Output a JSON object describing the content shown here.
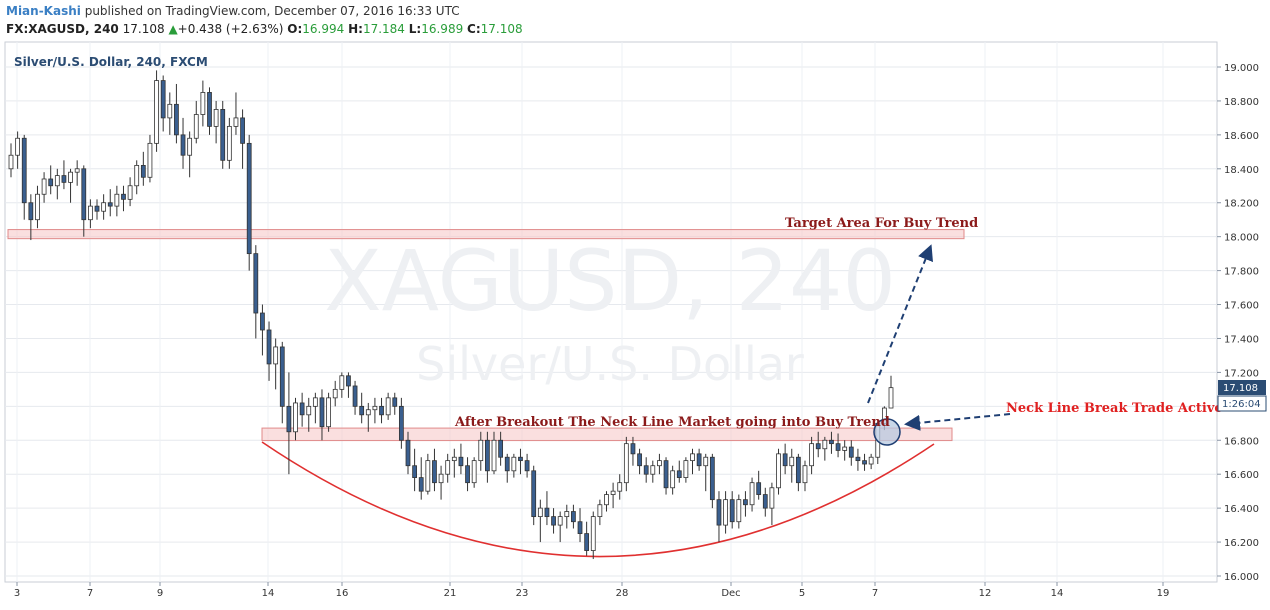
{
  "header": {
    "author": "Mian-Kashi",
    "published_text": "published on TradingView.com, December 07, 2016 16:33 UTC",
    "symbol": "FX:XAGUSD, 240",
    "last": "17.108",
    "change": "+0.438 (+2.63%)",
    "open_label": "O:",
    "open": "16.994",
    "high_label": "H:",
    "high": "17.184",
    "low_label": "L:",
    "low": "16.989",
    "close_label": "C:",
    "close": "17.108"
  },
  "chart": {
    "title": "Silver/U.S. Dollar, 240, FXCM",
    "watermark_main": "XAGUSD, 240",
    "watermark_sub": "Silver/U.S. Dollar",
    "price_tag": "17.108",
    "countdown_tag": "1:26:04"
  },
  "annotations": {
    "target": "Target Area For Buy Trend",
    "breakout": "After Breakout The Neck Line Market going into Buy Trend",
    "neckline": "Neck Line Break Trade Active"
  },
  "colors": {
    "up": "#ffffff",
    "down": "#3a5f8f",
    "wick": "#333333",
    "zone_fill": "#f7c9c9",
    "zone_stroke": "#e08a8a",
    "curve": "#e03030",
    "arrow": "#1f3f73",
    "annotation_dark": "#8b1a1a",
    "annotation_red": "#e02020",
    "up_text": "#2a9d3a"
  },
  "chart_data": {
    "type": "candlestick",
    "title": "Silver/U.S. Dollar, 240, FXCM",
    "xlabel": "",
    "ylabel": "",
    "ylim": [
      16.0,
      19.0
    ],
    "yticks": [
      "16.000",
      "16.200",
      "16.400",
      "16.600",
      "16.800",
      "17.000",
      "17.200",
      "17.400",
      "17.600",
      "17.800",
      "18.000",
      "18.200",
      "18.400",
      "18.600",
      "18.800",
      "19.000"
    ],
    "xticks": [
      "3",
      "7",
      "9",
      "14",
      "16",
      "21",
      "23",
      "28",
      "Dec",
      "5",
      "7",
      "12",
      "14",
      "19"
    ],
    "grid": true,
    "zones": [
      {
        "label": "Target Area For Buy Trend",
        "low": 18.0,
        "high": 18.03
      },
      {
        "label": "Neck Line",
        "low": 16.81,
        "high": 16.86
      }
    ],
    "ohlc": [
      [
        18.4,
        18.55,
        18.35,
        18.48
      ],
      [
        18.48,
        18.62,
        18.4,
        18.58
      ],
      [
        18.58,
        18.6,
        18.1,
        18.2
      ],
      [
        18.2,
        18.25,
        17.98,
        18.1
      ],
      [
        18.1,
        18.3,
        18.05,
        18.25
      ],
      [
        18.25,
        18.38,
        18.2,
        18.34
      ],
      [
        18.34,
        18.42,
        18.25,
        18.3
      ],
      [
        18.3,
        18.4,
        18.22,
        18.36
      ],
      [
        18.36,
        18.45,
        18.28,
        18.32
      ],
      [
        18.32,
        18.4,
        18.2,
        18.38
      ],
      [
        18.38,
        18.45,
        18.3,
        18.4
      ],
      [
        18.4,
        18.42,
        18.0,
        18.1
      ],
      [
        18.1,
        18.22,
        18.05,
        18.18
      ],
      [
        18.18,
        18.22,
        18.1,
        18.15
      ],
      [
        18.15,
        18.25,
        18.1,
        18.2
      ],
      [
        18.2,
        18.28,
        18.12,
        18.18
      ],
      [
        18.18,
        18.3,
        18.12,
        18.25
      ],
      [
        18.25,
        18.3,
        18.15,
        18.22
      ],
      [
        18.22,
        18.35,
        18.18,
        18.3
      ],
      [
        18.3,
        18.45,
        18.25,
        18.42
      ],
      [
        18.42,
        18.5,
        18.3,
        18.35
      ],
      [
        18.35,
        18.6,
        18.32,
        18.55
      ],
      [
        18.55,
        18.98,
        18.5,
        18.92
      ],
      [
        18.92,
        18.95,
        18.62,
        18.7
      ],
      [
        18.7,
        18.85,
        18.6,
        18.78
      ],
      [
        18.78,
        18.9,
        18.55,
        18.6
      ],
      [
        18.6,
        18.7,
        18.4,
        18.48
      ],
      [
        18.48,
        18.62,
        18.35,
        18.58
      ],
      [
        18.58,
        18.8,
        18.55,
        18.72
      ],
      [
        18.72,
        18.92,
        18.65,
        18.85
      ],
      [
        18.85,
        18.88,
        18.6,
        18.65
      ],
      [
        18.65,
        18.8,
        18.55,
        18.75
      ],
      [
        18.75,
        18.8,
        18.4,
        18.45
      ],
      [
        18.45,
        18.7,
        18.4,
        18.65
      ],
      [
        18.65,
        18.85,
        18.6,
        18.7
      ],
      [
        18.7,
        18.75,
        18.4,
        18.55
      ],
      [
        18.55,
        18.6,
        17.8,
        17.9
      ],
      [
        17.9,
        17.95,
        17.4,
        17.55
      ],
      [
        17.55,
        17.6,
        17.3,
        17.45
      ],
      [
        17.45,
        17.5,
        17.15,
        17.25
      ],
      [
        17.25,
        17.4,
        17.1,
        17.35
      ],
      [
        17.35,
        17.38,
        16.9,
        17.0
      ],
      [
        17.0,
        17.2,
        16.6,
        16.85
      ],
      [
        16.85,
        17.05,
        16.8,
        17.02
      ],
      [
        17.02,
        17.08,
        16.88,
        16.95
      ],
      [
        16.95,
        17.05,
        16.85,
        17.0
      ],
      [
        17.0,
        17.08,
        16.9,
        17.05
      ],
      [
        17.05,
        17.1,
        16.8,
        16.88
      ],
      [
        16.88,
        17.08,
        16.85,
        17.05
      ],
      [
        17.05,
        17.15,
        17.0,
        17.1
      ],
      [
        17.1,
        17.2,
        17.05,
        17.18
      ],
      [
        17.18,
        17.2,
        17.05,
        17.12
      ],
      [
        17.12,
        17.15,
        16.95,
        17.0
      ],
      [
        17.0,
        17.08,
        16.9,
        16.95
      ],
      [
        16.95,
        17.02,
        16.85,
        16.98
      ],
      [
        16.98,
        17.05,
        16.9,
        17.0
      ],
      [
        17.0,
        17.05,
        16.9,
        16.95
      ],
      [
        16.95,
        17.08,
        16.92,
        17.05
      ],
      [
        17.05,
        17.08,
        16.95,
        17.0
      ],
      [
        17.0,
        17.05,
        16.75,
        16.8
      ],
      [
        16.8,
        16.85,
        16.6,
        16.65
      ],
      [
        16.65,
        16.75,
        16.5,
        16.58
      ],
      [
        16.58,
        16.7,
        16.45,
        16.5
      ],
      [
        16.5,
        16.72,
        16.48,
        16.68
      ],
      [
        16.68,
        16.75,
        16.5,
        16.55
      ],
      [
        16.55,
        16.65,
        16.45,
        16.6
      ],
      [
        16.6,
        16.72,
        16.55,
        16.68
      ],
      [
        16.68,
        16.75,
        16.58,
        16.7
      ],
      [
        16.7,
        16.78,
        16.6,
        16.65
      ],
      [
        16.65,
        16.7,
        16.5,
        16.55
      ],
      [
        16.55,
        16.7,
        16.52,
        16.68
      ],
      [
        16.68,
        16.85,
        16.62,
        16.8
      ],
      [
        16.8,
        16.85,
        16.55,
        16.62
      ],
      [
        16.62,
        16.85,
        16.6,
        16.8
      ],
      [
        16.8,
        16.85,
        16.65,
        16.7
      ],
      [
        16.7,
        16.72,
        16.55,
        16.62
      ],
      [
        16.62,
        16.72,
        16.58,
        16.7
      ],
      [
        16.7,
        16.75,
        16.6,
        16.68
      ],
      [
        16.68,
        16.72,
        16.58,
        16.62
      ],
      [
        16.62,
        16.65,
        16.3,
        16.35
      ],
      [
        16.35,
        16.45,
        16.2,
        16.4
      ],
      [
        16.4,
        16.5,
        16.3,
        16.35
      ],
      [
        16.35,
        16.4,
        16.25,
        16.3
      ],
      [
        16.3,
        16.38,
        16.2,
        16.35
      ],
      [
        16.35,
        16.42,
        16.28,
        16.38
      ],
      [
        16.38,
        16.42,
        16.28,
        16.32
      ],
      [
        16.32,
        16.4,
        16.2,
        16.25
      ],
      [
        16.25,
        16.32,
        16.12,
        16.15
      ],
      [
        16.15,
        16.38,
        16.1,
        16.35
      ],
      [
        16.35,
        16.45,
        16.3,
        16.42
      ],
      [
        16.42,
        16.5,
        16.38,
        16.48
      ],
      [
        16.48,
        16.55,
        16.4,
        16.5
      ],
      [
        16.5,
        16.6,
        16.45,
        16.55
      ],
      [
        16.55,
        16.82,
        16.5,
        16.78
      ],
      [
        16.78,
        16.82,
        16.65,
        16.72
      ],
      [
        16.72,
        16.75,
        16.6,
        16.65
      ],
      [
        16.65,
        16.7,
        16.55,
        16.6
      ],
      [
        16.6,
        16.68,
        16.55,
        16.65
      ],
      [
        16.65,
        16.72,
        16.6,
        16.68
      ],
      [
        16.68,
        16.7,
        16.48,
        16.52
      ],
      [
        16.52,
        16.65,
        16.48,
        16.62
      ],
      [
        16.62,
        16.68,
        16.55,
        16.58
      ],
      [
        16.58,
        16.7,
        16.55,
        16.68
      ],
      [
        16.68,
        16.75,
        16.6,
        16.72
      ],
      [
        16.72,
        16.75,
        16.62,
        16.65
      ],
      [
        16.65,
        16.72,
        16.5,
        16.7
      ],
      [
        16.7,
        16.72,
        16.4,
        16.45
      ],
      [
        16.45,
        16.5,
        16.2,
        16.3
      ],
      [
        16.3,
        16.5,
        16.25,
        16.45
      ],
      [
        16.45,
        16.5,
        16.28,
        16.32
      ],
      [
        16.32,
        16.48,
        16.28,
        16.45
      ],
      [
        16.45,
        16.5,
        16.35,
        16.42
      ],
      [
        16.42,
        16.58,
        16.38,
        16.55
      ],
      [
        16.55,
        16.62,
        16.45,
        16.48
      ],
      [
        16.48,
        16.52,
        16.35,
        16.4
      ],
      [
        16.4,
        16.55,
        16.3,
        16.52
      ],
      [
        16.52,
        16.75,
        16.48,
        16.72
      ],
      [
        16.72,
        16.78,
        16.6,
        16.65
      ],
      [
        16.65,
        16.75,
        16.55,
        16.7
      ],
      [
        16.7,
        16.72,
        16.5,
        16.55
      ],
      [
        16.55,
        16.68,
        16.5,
        16.65
      ],
      [
        16.65,
        16.82,
        16.6,
        16.78
      ],
      [
        16.78,
        16.85,
        16.7,
        16.75
      ],
      [
        16.75,
        16.82,
        16.68,
        16.8
      ],
      [
        16.8,
        16.85,
        16.72,
        16.78
      ],
      [
        16.78,
        16.84,
        16.7,
        16.74
      ],
      [
        16.74,
        16.8,
        16.68,
        16.76
      ],
      [
        16.76,
        16.8,
        16.65,
        16.7
      ],
      [
        16.7,
        16.75,
        16.62,
        16.68
      ],
      [
        16.68,
        16.72,
        16.62,
        16.66
      ],
      [
        16.66,
        16.72,
        16.63,
        16.7
      ],
      [
        16.7,
        16.92,
        16.66,
        16.9
      ],
      [
        16.9,
        17.0,
        16.86,
        16.99
      ],
      [
        16.99,
        17.18,
        16.99,
        17.11
      ]
    ]
  }
}
